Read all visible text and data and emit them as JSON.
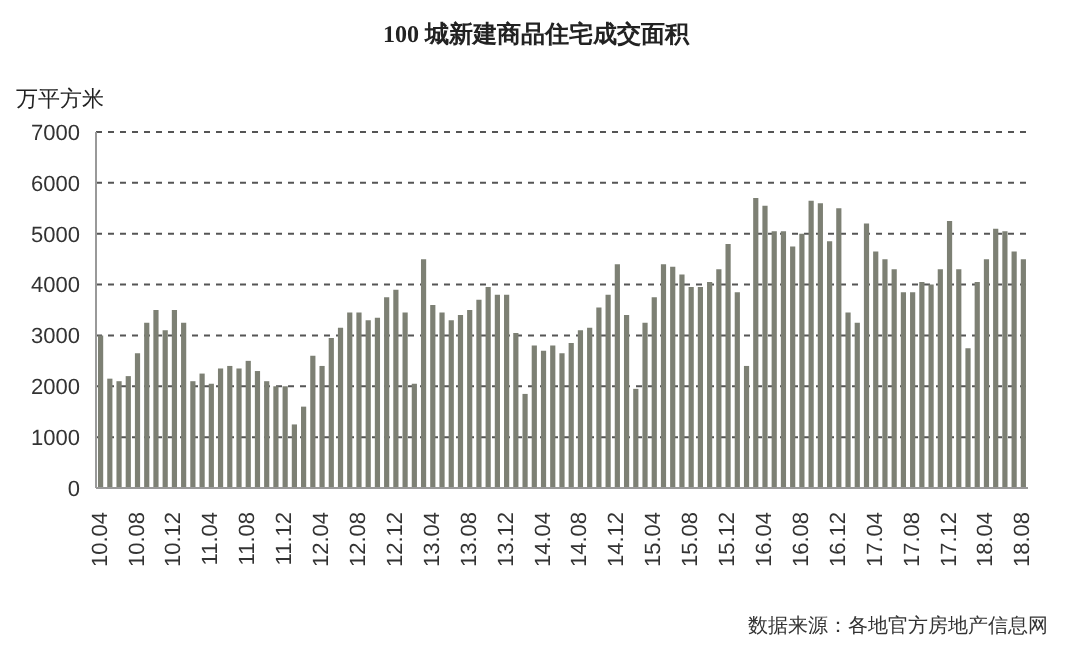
{
  "chart_data": {
    "type": "bar",
    "title": "100 城新建商品住宅成交面积",
    "ylabel": "万平方米",
    "annotations": [
      "数据来源：各地官方房地产信息网"
    ],
    "categories": [
      "10.04",
      null,
      null,
      null,
      "10.08",
      null,
      null,
      null,
      "10.12",
      null,
      null,
      null,
      "11.04",
      null,
      null,
      null,
      "11.08",
      null,
      null,
      null,
      "11.12",
      null,
      null,
      null,
      "12.04",
      null,
      null,
      null,
      "12.08",
      null,
      null,
      null,
      "12.12",
      null,
      null,
      null,
      "13.04",
      null,
      null,
      null,
      "13.08",
      null,
      null,
      null,
      "13.12",
      null,
      null,
      null,
      "14.04",
      null,
      null,
      null,
      "14.08",
      null,
      null,
      null,
      "14.12",
      null,
      null,
      null,
      "15.04",
      null,
      null,
      null,
      "15.08",
      null,
      null,
      null,
      "15.12",
      null,
      null,
      null,
      "16.04",
      null,
      null,
      null,
      "16.08",
      null,
      null,
      null,
      "16.12",
      null,
      null,
      null,
      "17.04",
      null,
      null,
      null,
      "17.08",
      null,
      null,
      null,
      "17.12",
      null,
      null,
      null,
      "18.04",
      null,
      null,
      null,
      "18.08"
    ],
    "values": [
      3000,
      2150,
      2100,
      2200,
      2650,
      3250,
      3500,
      3100,
      3500,
      3250,
      2100,
      2250,
      2050,
      2350,
      2400,
      2350,
      2500,
      2300,
      2100,
      2000,
      2000,
      1250,
      1600,
      2600,
      2400,
      2950,
      3150,
      3450,
      3450,
      3300,
      3350,
      3750,
      3900,
      3450,
      2050,
      4500,
      3600,
      3450,
      3300,
      3400,
      3500,
      3700,
      3950,
      3800,
      3800,
      3050,
      1850,
      2800,
      2700,
      2800,
      2650,
      2850,
      3100,
      3150,
      3550,
      3800,
      4400,
      3400,
      1950,
      3250,
      3750,
      4400,
      4350,
      4200,
      3950,
      3950,
      4050,
      4300,
      4800,
      3850,
      2400,
      5700,
      5550,
      5050,
      5050,
      4750,
      5000,
      5650,
      5600,
      4850,
      5500,
      3450,
      3250,
      5200,
      4650,
      4500,
      4300,
      3850,
      3850,
      4050,
      4000,
      4300,
      5250,
      4300,
      2750,
      4050,
      4500,
      5100,
      5050,
      4650,
      4500
    ],
    "color": "#7d8074",
    "ylim": [
      0,
      7000
    ],
    "yticks": [
      0,
      1000,
      2000,
      3000,
      4000,
      5000,
      6000,
      7000
    ],
    "grid": "y"
  }
}
